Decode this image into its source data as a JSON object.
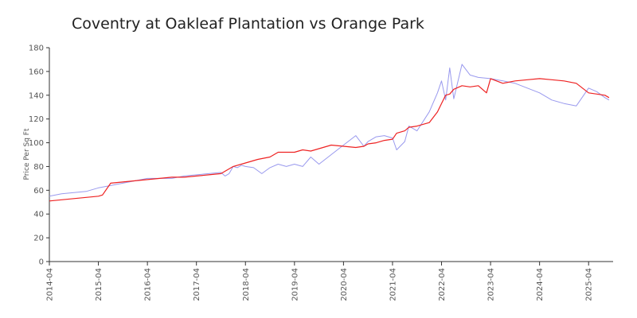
{
  "chart_data": {
    "type": "line",
    "title": "Coventry at Oakleaf Plantation vs Orange Park",
    "xlabel": "",
    "ylabel": "Price Per Sq Ft",
    "ylim": [
      0,
      180
    ],
    "y_ticks": [
      "0",
      "20",
      "40",
      "60",
      "80",
      "100",
      "120",
      "140",
      "160",
      "180"
    ],
    "x_ticks": [
      "2014-04",
      "2015-04",
      "2016-04",
      "2017-04",
      "2018-04",
      "2019-04",
      "2020-04",
      "2021-04",
      "2022-04",
      "2023-04",
      "2024-04",
      "2025-04"
    ],
    "grid": false,
    "legend": "none",
    "series": [
      {
        "color": "#9999ee",
        "x": [
          "2014-04",
          "2014-07",
          "2014-10",
          "2015-01",
          "2015-04",
          "2015-07",
          "2015-10",
          "2016-01",
          "2016-04",
          "2016-07",
          "2016-10",
          "2017-01",
          "2017-04",
          "2017-07",
          "2017-10",
          "2017-11",
          "2017-12",
          "2018-01",
          "2018-02",
          "2018-03",
          "2018-04",
          "2018-06",
          "2018-08",
          "2018-10",
          "2018-12",
          "2019-02",
          "2019-04",
          "2019-06",
          "2019-08",
          "2019-10",
          "2020-01",
          "2020-04",
          "2020-07",
          "2020-09",
          "2020-10",
          "2020-12",
          "2021-02",
          "2021-04",
          "2021-05",
          "2021-07",
          "2021-08",
          "2021-10",
          "2022-01",
          "2022-03",
          "2022-04",
          "2022-05",
          "2022-06",
          "2022-07",
          "2022-09",
          "2022-11",
          "2023-01",
          "2023-04",
          "2023-07",
          "2023-10",
          "2024-01",
          "2024-04",
          "2024-07",
          "2024-10",
          "2025-01",
          "2025-04",
          "2025-06",
          "2025-08",
          "2025-09"
        ],
        "values": [
          55,
          57,
          58,
          59,
          62,
          64,
          66,
          68,
          70,
          70,
          70,
          72,
          73,
          74,
          75,
          72,
          74,
          80,
          79,
          81,
          80,
          79,
          74,
          79,
          82,
          80,
          82,
          80,
          88,
          82,
          90,
          98,
          106,
          97,
          101,
          105,
          106,
          104,
          94,
          101,
          114,
          110,
          126,
          142,
          152,
          136,
          163,
          137,
          166,
          157,
          155,
          154,
          152,
          150,
          146,
          142,
          136,
          133,
          131,
          146,
          143,
          138,
          136
        ]
      },
      {
        "color": "#ee2222",
        "x": [
          "2014-04",
          "2014-07",
          "2014-10",
          "2015-01",
          "2015-04",
          "2015-05",
          "2015-07",
          "2015-10",
          "2016-01",
          "2016-04",
          "2016-07",
          "2016-10",
          "2017-01",
          "2017-04",
          "2017-07",
          "2017-10",
          "2018-01",
          "2018-04",
          "2018-07",
          "2018-10",
          "2018-12",
          "2019-02",
          "2019-04",
          "2019-06",
          "2019-08",
          "2019-10",
          "2020-01",
          "2020-04",
          "2020-07",
          "2020-09",
          "2020-10",
          "2020-12",
          "2021-02",
          "2021-04",
          "2021-05",
          "2021-07",
          "2021-08",
          "2021-10",
          "2022-01",
          "2022-03",
          "2022-04",
          "2022-05",
          "2022-06",
          "2022-07",
          "2022-09",
          "2022-11",
          "2023-01",
          "2023-03",
          "2023-04",
          "2023-07",
          "2023-10",
          "2024-01",
          "2024-04",
          "2024-07",
          "2024-10",
          "2025-01",
          "2025-04",
          "2025-06",
          "2025-08",
          "2025-09"
        ],
        "values": [
          51,
          52,
          53,
          54,
          55,
          56,
          66,
          67,
          68,
          69,
          70,
          71,
          71,
          72,
          73,
          74,
          80,
          83,
          86,
          88,
          92,
          92,
          92,
          94,
          93,
          95,
          98,
          97,
          96,
          97,
          99,
          100,
          102,
          103,
          108,
          110,
          113,
          114,
          117,
          126,
          133,
          140,
          141,
          145,
          148,
          147,
          148,
          142,
          154,
          150,
          152,
          153,
          154,
          153,
          152,
          150,
          142,
          141,
          140,
          138
        ]
      }
    ]
  }
}
